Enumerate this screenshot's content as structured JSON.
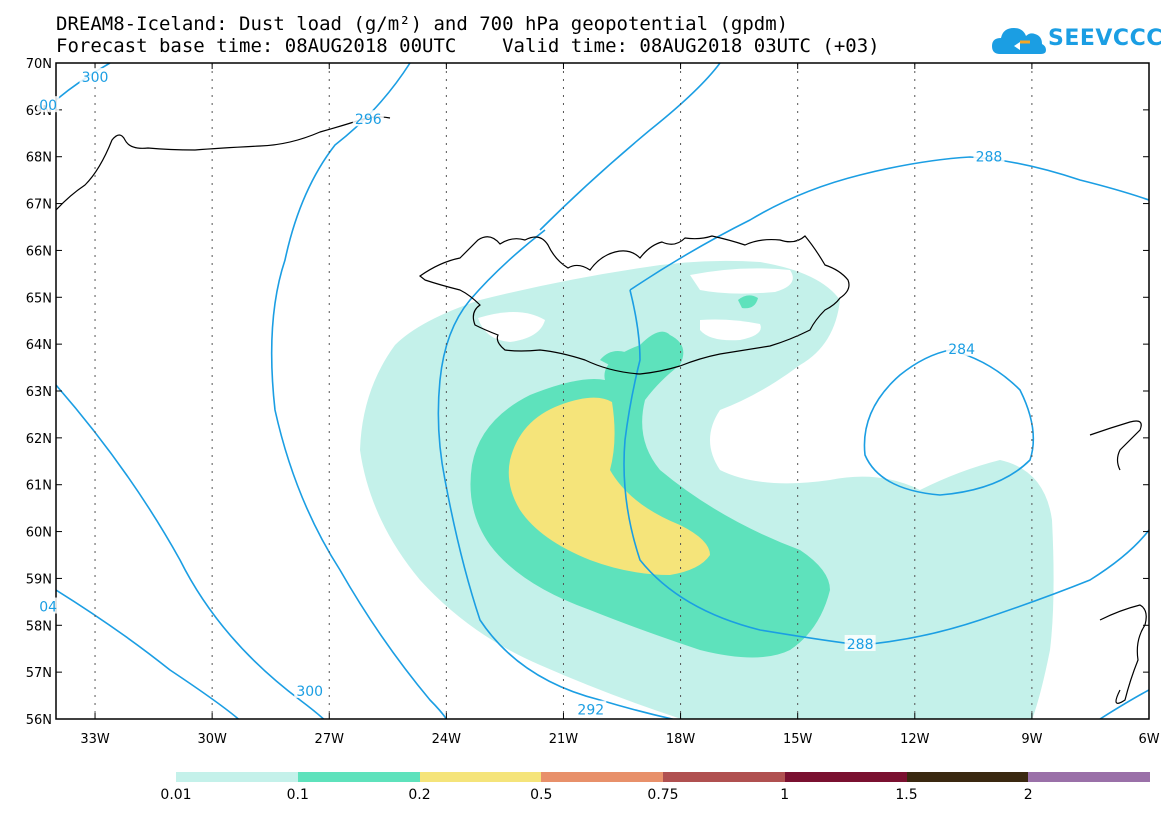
{
  "title_line1": "DREAM8-Iceland: Dust load (g/m²) and 700 hPa geopotential (gpdm)",
  "title_line2": "Forecast base time: 08AUG2018 00UTC    Valid time: 08AUG2018 03UTC (+03)",
  "logo_text": "SEEVCCC",
  "lat_labels": [
    "70N",
    "69N",
    "68N",
    "67N",
    "66N",
    "65N",
    "64N",
    "63N",
    "62N",
    "61N",
    "60N",
    "59N",
    "58N",
    "57N",
    "56N"
  ],
  "lon_labels": [
    "33W",
    "30W",
    "27W",
    "24W",
    "21W",
    "18W",
    "15W",
    "12W",
    "9W",
    "6W"
  ],
  "contour_labels": [
    {
      "text": "300",
      "lon": -33.0,
      "lat": 69.7
    },
    {
      "text": "00",
      "lon": -34.2,
      "lat": 69.1
    },
    {
      "text": "296",
      "lon": -26.0,
      "lat": 68.8
    },
    {
      "text": "288",
      "lon": -10.1,
      "lat": 68.0
    },
    {
      "text": "284",
      "lon": -10.8,
      "lat": 63.9
    },
    {
      "text": "288",
      "lon": -13.4,
      "lat": 57.6
    },
    {
      "text": "292",
      "lon": -20.3,
      "lat": 56.2
    },
    {
      "text": "300",
      "lon": -27.5,
      "lat": 56.6
    },
    {
      "text": "04",
      "lon": -34.2,
      "lat": 58.4
    }
  ],
  "legend": {
    "colors": [
      "#c4f1ea",
      "#5ee2bc",
      "#f5e47a",
      "#e8906a",
      "#b05050",
      "#7a1030",
      "#3a2810",
      "#9a70a8"
    ],
    "labels": [
      "0.01",
      "0.1",
      "0.2",
      "0.5",
      "0.75",
      "1",
      "1.5",
      "2"
    ]
  },
  "map_extent": {
    "lon_min": -34.0,
    "lon_max": -6.0,
    "lat_min": 56.0,
    "lat_max": 70.0
  },
  "contour_color": "#1b9ee3"
}
